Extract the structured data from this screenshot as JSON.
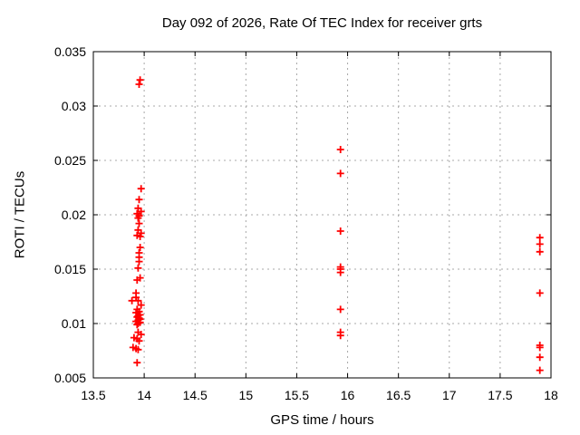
{
  "chart_data": {
    "type": "scatter",
    "title": "Day 092 of 2026, Rate Of TEC Index for receiver grts",
    "xlabel": "GPS time / hours",
    "ylabel": "ROTI / TECUs",
    "xlim": [
      13.5,
      18
    ],
    "ylim": [
      0.005,
      0.035
    ],
    "x_ticks": [
      {
        "v": 13.5,
        "label": "13.5"
      },
      {
        "v": 14,
        "label": "14"
      },
      {
        "v": 14.5,
        "label": "14.5"
      },
      {
        "v": 15,
        "label": "15"
      },
      {
        "v": 15.5,
        "label": "15.5"
      },
      {
        "v": 16,
        "label": "16"
      },
      {
        "v": 16.5,
        "label": "16.5"
      },
      {
        "v": 17,
        "label": "17"
      },
      {
        "v": 17.5,
        "label": "17.5"
      },
      {
        "v": 18,
        "label": "18"
      }
    ],
    "y_ticks": [
      {
        "v": 0.005,
        "label": "0.005"
      },
      {
        "v": 0.01,
        "label": "0.01"
      },
      {
        "v": 0.015,
        "label": "0.015"
      },
      {
        "v": 0.02,
        "label": "0.02"
      },
      {
        "v": 0.025,
        "label": "0.025"
      },
      {
        "v": 0.03,
        "label": "0.03"
      },
      {
        "v": 0.035,
        "label": "0.035"
      }
    ],
    "grid": true,
    "legend_position": "none",
    "grid_color": "#a8a8a8",
    "axis_color": "#000000",
    "background_color": "#ffffff",
    "marker": {
      "shape": "plus",
      "color": "#ff0000",
      "size": 9
    },
    "series": [
      {
        "name": "ROTI",
        "color": "#ff0000",
        "points": [
          [
            13.96,
            0.0324
          ],
          [
            13.95,
            0.032
          ],
          [
            13.97,
            0.0224
          ],
          [
            13.95,
            0.0214
          ],
          [
            13.94,
            0.0206
          ],
          [
            13.97,
            0.0203
          ],
          [
            13.93,
            0.0201
          ],
          [
            13.95,
            0.0199
          ],
          [
            13.94,
            0.0197
          ],
          [
            13.95,
            0.0192
          ],
          [
            13.94,
            0.0186
          ],
          [
            13.97,
            0.0183
          ],
          [
            13.93,
            0.0181
          ],
          [
            13.96,
            0.018
          ],
          [
            13.96,
            0.017
          ],
          [
            13.95,
            0.0165
          ],
          [
            13.95,
            0.0161
          ],
          [
            13.95,
            0.0157
          ],
          [
            13.94,
            0.0151
          ],
          [
            13.96,
            0.0142
          ],
          [
            13.93,
            0.014
          ],
          [
            13.92,
            0.0128
          ],
          [
            13.92,
            0.0124
          ],
          [
            13.88,
            0.0121
          ],
          [
            13.94,
            0.0121
          ],
          [
            13.97,
            0.0117
          ],
          [
            13.93,
            0.0113
          ],
          [
            13.95,
            0.0111
          ],
          [
            13.92,
            0.011
          ],
          [
            13.96,
            0.0108
          ],
          [
            13.94,
            0.0107
          ],
          [
            13.93,
            0.0106
          ],
          [
            13.95,
            0.0105
          ],
          [
            13.96,
            0.0104
          ],
          [
            13.94,
            0.0103
          ],
          [
            13.92,
            0.0102
          ],
          [
            13.96,
            0.0101
          ],
          [
            13.94,
            0.01
          ],
          [
            13.93,
            0.0099
          ],
          [
            13.94,
            0.0092
          ],
          [
            13.97,
            0.009
          ],
          [
            13.9,
            0.0087
          ],
          [
            13.93,
            0.0086
          ],
          [
            13.95,
            0.0084
          ],
          [
            13.89,
            0.0078
          ],
          [
            13.92,
            0.0077
          ],
          [
            13.94,
            0.0076
          ],
          [
            13.93,
            0.0064
          ],
          [
            15.93,
            0.026
          ],
          [
            15.93,
            0.0238
          ],
          [
            15.93,
            0.0185
          ],
          [
            15.93,
            0.0152
          ],
          [
            15.93,
            0.015
          ],
          [
            15.93,
            0.0147
          ],
          [
            15.93,
            0.0113
          ],
          [
            15.93,
            0.0092
          ],
          [
            15.93,
            0.0089
          ],
          [
            17.89,
            0.0179
          ],
          [
            17.89,
            0.0173
          ],
          [
            17.89,
            0.0166
          ],
          [
            17.89,
            0.0128
          ],
          [
            17.89,
            0.008
          ],
          [
            17.89,
            0.0078
          ],
          [
            17.89,
            0.0069
          ],
          [
            17.89,
            0.0057
          ]
        ]
      }
    ]
  }
}
